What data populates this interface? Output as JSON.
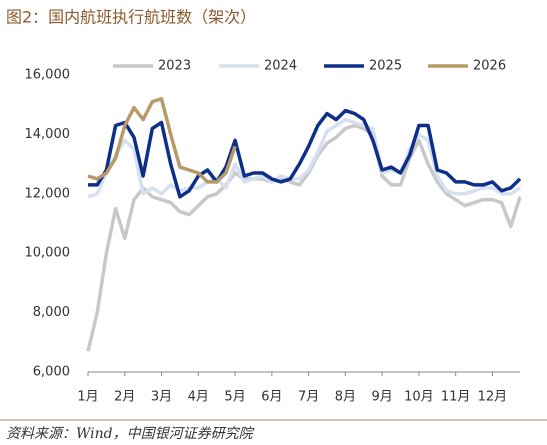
{
  "chart_data": {
    "type": "line",
    "title": "图2：国内航班执行航班数（架次）",
    "source": "资料来源：Wind，中国银河证券研究院",
    "categories": [
      "1月",
      null,
      null,
      null,
      "2月",
      null,
      null,
      null,
      "3月",
      null,
      null,
      null,
      "4月",
      null,
      null,
      null,
      "5月",
      null,
      null,
      null,
      "6月",
      null,
      null,
      null,
      "7月",
      null,
      null,
      null,
      "8月",
      null,
      null,
      null,
      "9月",
      null,
      null,
      null,
      "10月",
      null,
      null,
      null,
      "11月",
      null,
      null,
      null,
      "12月",
      null,
      null,
      null
    ],
    "series": [
      {
        "name": "2023",
        "color": "#c8c8c8",
        "values": [
          6700,
          8000,
          10000,
          11500,
          10500,
          11800,
          12200,
          11900,
          11800,
          11700,
          11400,
          11300,
          11600,
          11900,
          12000,
          12300,
          12700,
          12500,
          12500,
          12500,
          12400,
          12500,
          12400,
          12300,
          12700,
          13300,
          13700,
          13900,
          14200,
          14300,
          14200,
          14000,
          12600,
          12300,
          12300,
          13200,
          13800,
          13000,
          12400,
          12000,
          11800,
          11600,
          11700,
          11800,
          11800,
          11700,
          10900,
          11900
        ]
      },
      {
        "name": "2024",
        "color": "#d5e0f0",
        "values": [
          11900,
          12000,
          12700,
          13300,
          13800,
          13500,
          12000,
          12200,
          12000,
          12300,
          12100,
          12200,
          12200,
          12400,
          12500,
          12200,
          13000,
          12400,
          12500,
          12600,
          12400,
          12600,
          12500,
          12500,
          12800,
          13400,
          14100,
          14300,
          14500,
          14400,
          14300,
          14200,
          12700,
          12800,
          12700,
          13500,
          14000,
          13800,
          12600,
          12100,
          12000,
          12000,
          12100,
          12200,
          12200,
          12000,
          12000,
          12200
        ]
      },
      {
        "name": "2025",
        "color": "#0d2f8a",
        "values": [
          12300,
          12300,
          12800,
          14300,
          14400,
          13900,
          12600,
          14200,
          14400,
          13000,
          11900,
          12100,
          12600,
          12800,
          12400,
          12900,
          13800,
          12600,
          12700,
          12700,
          12500,
          12400,
          12500,
          13000,
          13600,
          14300,
          14700,
          14500,
          14800,
          14700,
          14500,
          13800,
          12800,
          12900,
          12700,
          13300,
          14300,
          14300,
          12800,
          12700,
          12400,
          12400,
          12300,
          12300,
          12400,
          12100,
          12200,
          12500
        ]
      },
      {
        "name": "2026",
        "color": "#b8996a",
        "values": [
          12600,
          12500,
          12700,
          13200,
          14300,
          14900,
          14500,
          15100,
          15200,
          14000,
          12900,
          12800,
          12700,
          12400,
          12400,
          12700,
          13600,
          null,
          null,
          null,
          null,
          null,
          null,
          null,
          null,
          null,
          null,
          null,
          null,
          null,
          null,
          null,
          null,
          null,
          null,
          null,
          null,
          null,
          null,
          null,
          null,
          null,
          null,
          null,
          null,
          null,
          null,
          null
        ]
      }
    ],
    "ylim": [
      6000,
      16000
    ],
    "yticks": [
      {
        "value": 6000,
        "label": "6,000"
      },
      {
        "value": 8000,
        "label": "8,000"
      },
      {
        "value": 10000,
        "label": "10,000"
      },
      {
        "value": 12000,
        "label": "12,000"
      },
      {
        "value": 14000,
        "label": "14,000"
      },
      {
        "value": 16000,
        "label": "16,000"
      }
    ],
    "legend": "top"
  }
}
